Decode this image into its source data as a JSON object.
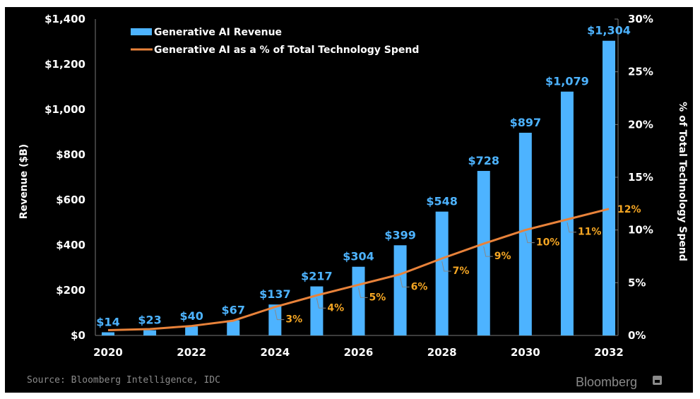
{
  "chart_data": {
    "type": "bar",
    "title": "",
    "categories": [
      "2020",
      "2021",
      "2022",
      "2023",
      "2024",
      "2025",
      "2026",
      "2027",
      "2028",
      "2029",
      "2030",
      "2031",
      "2032"
    ],
    "x_tick_labels": [
      "2020",
      "2022",
      "2024",
      "2026",
      "2028",
      "2030",
      "2032"
    ],
    "series": [
      {
        "name": "Generative AI Revenue",
        "type": "bar",
        "axis": "left",
        "color": "#4db3ff",
        "values": [
          14,
          23,
          40,
          67,
          137,
          217,
          304,
          399,
          548,
          728,
          897,
          1079,
          1304
        ],
        "labels": [
          "$14",
          "$23",
          "$40",
          "$67",
          "$137",
          "$217",
          "$304",
          "$399",
          "$548",
          "$728",
          "$897",
          "$1,079",
          "$1,304"
        ]
      },
      {
        "name": "Generative AI as a % of Total Technology Spend",
        "type": "line",
        "axis": "right",
        "color": "#e8823a",
        "label_color": "#f5a623",
        "values": [
          0.5,
          0.6,
          0.9,
          1.4,
          2.7,
          3.8,
          4.8,
          5.8,
          7.3,
          8.7,
          10.0,
          11.0,
          12.0
        ],
        "labels": [
          "",
          "",
          "",
          "",
          "3%",
          "4%",
          "5%",
          "6%",
          "7%",
          "9%",
          "10%",
          "11%",
          "12%"
        ]
      }
    ],
    "ylabel": "Revenue ($B)",
    "ylim": [
      0,
      1400
    ],
    "y_ticks": [
      0,
      200,
      400,
      600,
      800,
      1000,
      1200,
      1400
    ],
    "y_tick_labels": [
      "$0",
      "$200",
      "$400",
      "$600",
      "$800",
      "$1,000",
      "$1,200",
      "$1,400"
    ],
    "y2label": "% of Total Technology Spend",
    "y2lim": [
      0,
      30
    ],
    "y2_ticks": [
      0,
      5,
      10,
      15,
      20,
      25,
      30
    ],
    "y2_tick_labels": [
      "0%",
      "5%",
      "10%",
      "15%",
      "20%",
      "25%",
      "30%"
    ],
    "grid": false,
    "legend_position": "top-left",
    "background": "#000000"
  },
  "footer": {
    "source": "Source: Bloomberg Intelligence, IDC",
    "brand": "Bloomberg"
  }
}
